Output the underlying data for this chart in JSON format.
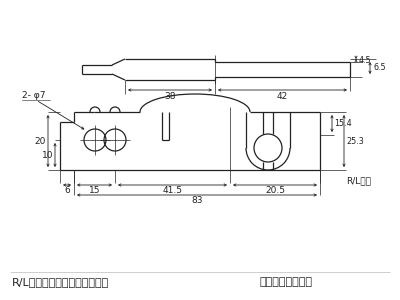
{
  "background_color": "#ffffff",
  "line_color": "#222222",
  "text_color": "#222222",
  "font_size": 6.5,
  "small_font": 5.8,
  "footer_font": 8.0,
  "footer_left": "R/Lセットでご注文ください。",
  "footer_right": "ユニクロメッキ付",
  "label_phi": "2- φ7",
  "label_rl": "R/Lあり",
  "dims": {
    "top_38": "38",
    "top_42": "42",
    "top_4_5": "4.5",
    "top_6_5": "6.5",
    "left_20": "20",
    "left_10": "10",
    "bot_6": "6",
    "bot_15": "15",
    "bot_41_5": "41.5",
    "bot_20_5": "20.5",
    "bot_83": "83",
    "right_15_4": "15.4",
    "right_25_3": "25.3"
  }
}
